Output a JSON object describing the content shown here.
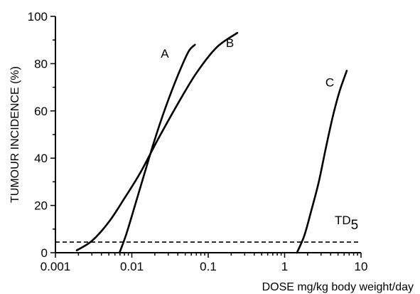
{
  "chart_data": {
    "type": "line",
    "title": "",
    "xlabel": "DOSE mg/kg body weight/day",
    "ylabel": "TUMOUR INCIDENCE (%)",
    "x_scale": "log",
    "xlim": [
      0.001,
      10
    ],
    "ylim": [
      0,
      100
    ],
    "x_ticks": [
      0.001,
      0.01,
      0.1,
      1,
      10
    ],
    "x_tick_labels": [
      "0.001",
      "0.01",
      "0.1",
      "1",
      "10"
    ],
    "y_ticks": [
      0,
      20,
      40,
      60,
      80,
      100
    ],
    "y_tick_labels": [
      "0",
      "20",
      "40",
      "60",
      "80",
      "100"
    ],
    "grid": false,
    "legend": "none",
    "series": [
      {
        "name": "A",
        "points": [
          [
            0.0069,
            0
          ],
          [
            0.0085,
            8
          ],
          [
            0.011,
            20
          ],
          [
            0.0145,
            33
          ],
          [
            0.02,
            48
          ],
          [
            0.028,
            62
          ],
          [
            0.04,
            75
          ],
          [
            0.055,
            85
          ],
          [
            0.067,
            88
          ]
        ]
      },
      {
        "name": "B",
        "points": [
          [
            0.0019,
            1
          ],
          [
            0.003,
            5
          ],
          [
            0.005,
            13
          ],
          [
            0.008,
            23
          ],
          [
            0.013,
            34
          ],
          [
            0.022,
            48
          ],
          [
            0.04,
            63
          ],
          [
            0.07,
            76
          ],
          [
            0.13,
            87
          ],
          [
            0.24,
            93
          ]
        ]
      },
      {
        "name": "C",
        "points": [
          [
            1.45,
            0
          ],
          [
            1.8,
            7
          ],
          [
            2.2,
            17
          ],
          [
            2.8,
            30
          ],
          [
            3.5,
            45
          ],
          [
            4.3,
            58
          ],
          [
            5.2,
            68
          ],
          [
            6.5,
            77
          ]
        ]
      }
    ],
    "reference_lines": [
      {
        "y": 4.5,
        "style": "dashed",
        "label": "TD",
        "label_subscript": "5"
      }
    ]
  }
}
